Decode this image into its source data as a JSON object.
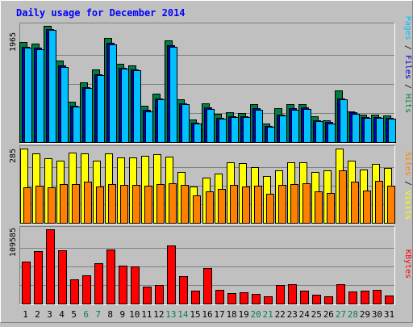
{
  "chart_data": {
    "type": "bar",
    "title": "Daily usage for December 2014",
    "categories": [
      "1",
      "2",
      "3",
      "4",
      "5",
      "6",
      "7",
      "8",
      "9",
      "10",
      "11",
      "12",
      "13",
      "14",
      "15",
      "16",
      "17",
      "18",
      "19",
      "20",
      "21",
      "22",
      "23",
      "24",
      "25",
      "26",
      "27",
      "28",
      "29",
      "30",
      "31"
    ],
    "weekend_days": [
      "6",
      "7",
      "13",
      "14",
      "20",
      "21",
      "27",
      "28"
    ],
    "panels": [
      {
        "name": "hits-files-pages",
        "ymax": 1965,
        "ymax_label": "1965",
        "right_label": {
          "pages": "Pages",
          "sep1": " / ",
          "files": "Files",
          "sep2": " / ",
          "hits": "Hits"
        },
        "series": [
          {
            "name": "Hits",
            "color": "#008040",
            "values": [
              1695,
              1668,
              1965,
              1372,
              680,
              1006,
              1230,
              1762,
              1322,
              1300,
              616,
              820,
              1716,
              730,
              387,
              659,
              480,
              502,
              490,
              647,
              318,
              567,
              648,
              647,
              442,
              372,
              874,
              522,
              460,
              459,
              445
            ]
          },
          {
            "name": "Files",
            "color": "#0000C0",
            "values": [
              1616,
              1590,
              1910,
              1300,
              610,
              930,
              1150,
              1680,
              1250,
              1234,
              540,
              740,
              1640,
              650,
              325,
              580,
              405,
              440,
              440,
              570,
              275,
              470,
              575,
              580,
              370,
              335,
              740,
              500,
              425,
              425,
              410
            ]
          },
          {
            "name": "Pages",
            "color": "#00C0FF",
            "values": [
              1590,
              1565,
              1890,
              1265,
              600,
              920,
              1130,
              1655,
              1240,
              1220,
              520,
              720,
              1610,
              640,
              320,
              560,
              390,
              420,
              420,
              550,
              260,
              450,
              550,
              560,
              355,
              320,
              720,
              480,
              405,
              405,
              395
            ]
          }
        ]
      },
      {
        "name": "visits-sites",
        "ymax": 285,
        "ymax_label": "285",
        "right_label": {
          "sites": "Sites",
          "sep": " / ",
          "visits": "Visits"
        },
        "series": [
          {
            "name": "Visits",
            "color": "#FFFF00",
            "values": [
              285,
              265,
              247,
              237,
              270,
              265,
              240,
              265,
              250,
              252,
              256,
              262,
              255,
              195,
              138,
              172,
              190,
              233,
              230,
              213,
              180,
              202,
              233,
              233,
              195,
              202,
              285,
              237,
              205,
              227,
              212
            ]
          },
          {
            "name": "Sites",
            "color": "#FF8000",
            "values": [
              137,
              142,
              135,
              148,
              150,
              158,
              140,
              150,
              145,
              147,
              142,
              150,
              152,
              145,
              105,
              120,
              130,
              145,
              140,
              143,
              112,
              145,
              150,
              153,
              122,
              114,
              200,
              158,
              125,
              162,
              142
            ]
          }
        ]
      },
      {
        "name": "kbytes",
        "ymax": 109585,
        "ymax_label": "109585",
        "right_label": {
          "kbytes": "KBytes"
        },
        "series": [
          {
            "name": "KBytes",
            "color": "#FF0000",
            "values": [
              62000,
              78000,
              109585,
              79000,
              36000,
              42000,
              59000,
              80000,
              56000,
              55000,
              25000,
              27000,
              86000,
              41000,
              19000,
              52000,
              20000,
              15000,
              17000,
              14000,
              11000,
              27000,
              29000,
              19000,
              13000,
              11000,
              28000,
              18000,
              19000,
              20000,
              12000
            ]
          }
        ]
      }
    ]
  }
}
